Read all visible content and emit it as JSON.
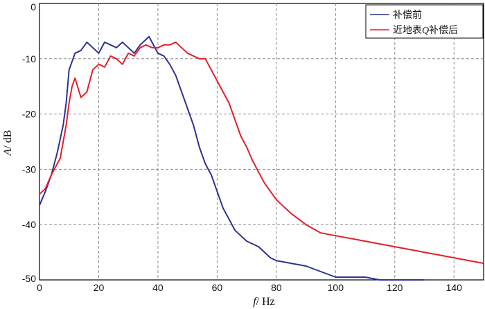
{
  "chart_data": {
    "type": "line",
    "title": "",
    "xlabel": {
      "var": "f",
      "unit": "/ Hz"
    },
    "ylabel": {
      "var": "A",
      "unit": "/ dB"
    },
    "xlim": [
      0,
      150
    ],
    "ylim": [
      -50,
      0
    ],
    "xticks": [
      "0",
      "20",
      "40",
      "60",
      "80",
      "100",
      "120",
      "140"
    ],
    "yticks": [
      "0",
      "-10",
      "-20",
      "-30",
      "-40",
      "-50"
    ],
    "grid": true,
    "legend_position": "top-right",
    "legend_entries": [
      {
        "prefix": "补偿前",
        "italic": "",
        "suffix": ""
      },
      {
        "prefix": "近地表",
        "italic": "Q",
        "suffix": "补偿后"
      }
    ],
    "series": [
      {
        "name": "补偿前",
        "color": "#2e3192",
        "x": [
          0,
          2,
          4,
          6,
          8,
          9,
          10,
          12,
          14,
          16,
          18,
          20,
          22,
          24,
          26,
          28,
          30,
          32,
          34,
          36,
          37,
          38,
          40,
          42,
          44,
          46,
          48,
          50,
          52,
          54,
          56,
          58,
          60,
          62,
          64,
          66,
          68,
          70,
          72,
          74,
          76,
          78,
          80,
          85,
          90,
          95,
          100,
          105,
          110,
          115,
          120,
          125,
          130
        ],
        "y": [
          -36.5,
          -34,
          -31,
          -27,
          -22,
          -18,
          -12,
          -9,
          -8.5,
          -7,
          -8,
          -9,
          -7,
          -7.5,
          -8,
          -7,
          -8,
          -9,
          -7.5,
          -6.5,
          -6,
          -7,
          -9,
          -9.5,
          -11,
          -13,
          -16,
          -19,
          -22,
          -26,
          -29,
          -31,
          -34,
          -37,
          -39,
          -41,
          -42,
          -43,
          -43.5,
          -44,
          -45,
          -46,
          -46.5,
          -47,
          -47.5,
          -48.5,
          -49.5,
          -49.5,
          -49.5,
          -50,
          -50.5,
          -50,
          -50.5
        ]
      },
      {
        "name": "近地表Q补偿后",
        "color": "#e51e2b",
        "x": [
          0,
          2,
          4,
          6,
          7,
          8,
          9,
          10,
          11,
          12,
          14,
          16,
          18,
          20,
          22,
          24,
          26,
          28,
          30,
          32,
          34,
          36,
          38,
          40,
          42,
          44,
          46,
          48,
          50,
          52,
          54,
          56,
          58,
          60,
          62,
          64,
          66,
          68,
          70,
          72,
          74,
          76,
          78,
          80,
          82,
          85,
          90,
          95,
          100,
          105,
          110,
          115,
          120,
          125,
          130,
          135,
          140,
          145,
          150
        ],
        "y": [
          -34.5,
          -33.5,
          -31,
          -29,
          -28,
          -25,
          -22,
          -18,
          -15,
          -13.5,
          -17,
          -16,
          -12,
          -11,
          -11.5,
          -9.5,
          -10,
          -11,
          -9,
          -9.5,
          -8,
          -7.5,
          -8,
          -8,
          -7.5,
          -7.5,
          -7,
          -8,
          -9,
          -9.5,
          -10,
          -10,
          -12,
          -14,
          -16,
          -18,
          -21,
          -24,
          -26,
          -28.5,
          -30.5,
          -32.5,
          -34,
          -35.5,
          -36.5,
          -38,
          -40,
          -41.5,
          -42,
          -42.5,
          -43,
          -43.5,
          -44,
          -44.5,
          -45,
          -45.5,
          -46,
          -46.5,
          -47
        ]
      }
    ]
  }
}
